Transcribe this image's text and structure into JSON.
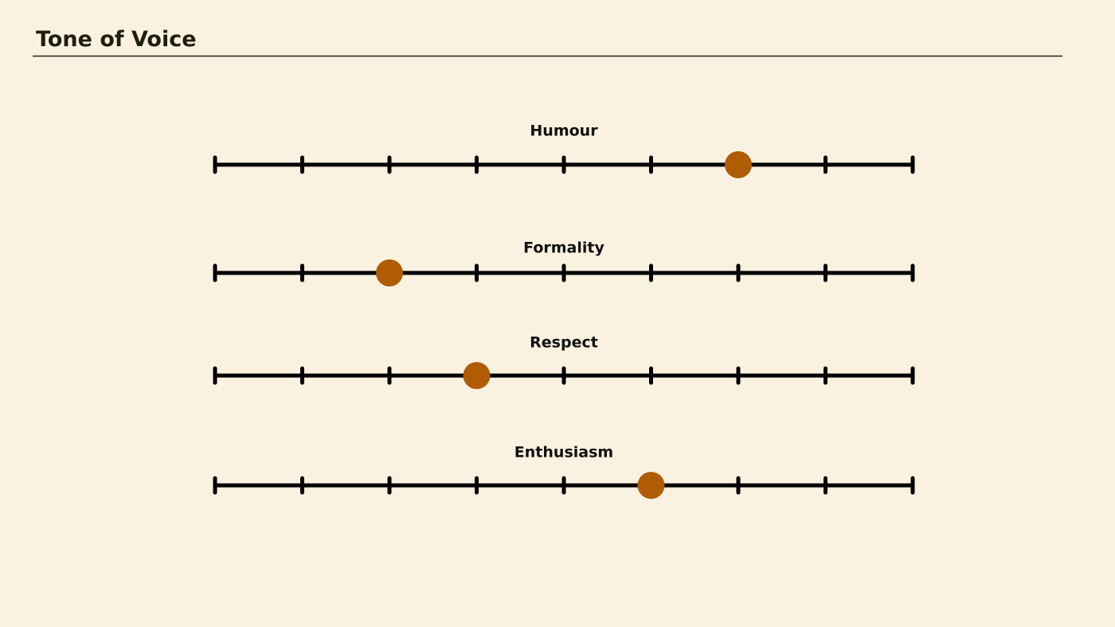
{
  "chart_data": {
    "type": "slider",
    "title": "Tone of Voice",
    "series": [
      {
        "name": "Humour",
        "value": 6
      },
      {
        "name": "Formality",
        "value": 2
      },
      {
        "name": "Respect",
        "value": 3
      },
      {
        "name": "Enthusiasm",
        "value": 5
      }
    ],
    "xlim": [
      0,
      8
    ],
    "xticks": [
      0,
      1,
      2,
      3,
      4,
      5,
      6,
      7,
      8
    ],
    "color": "#b05c05"
  }
}
